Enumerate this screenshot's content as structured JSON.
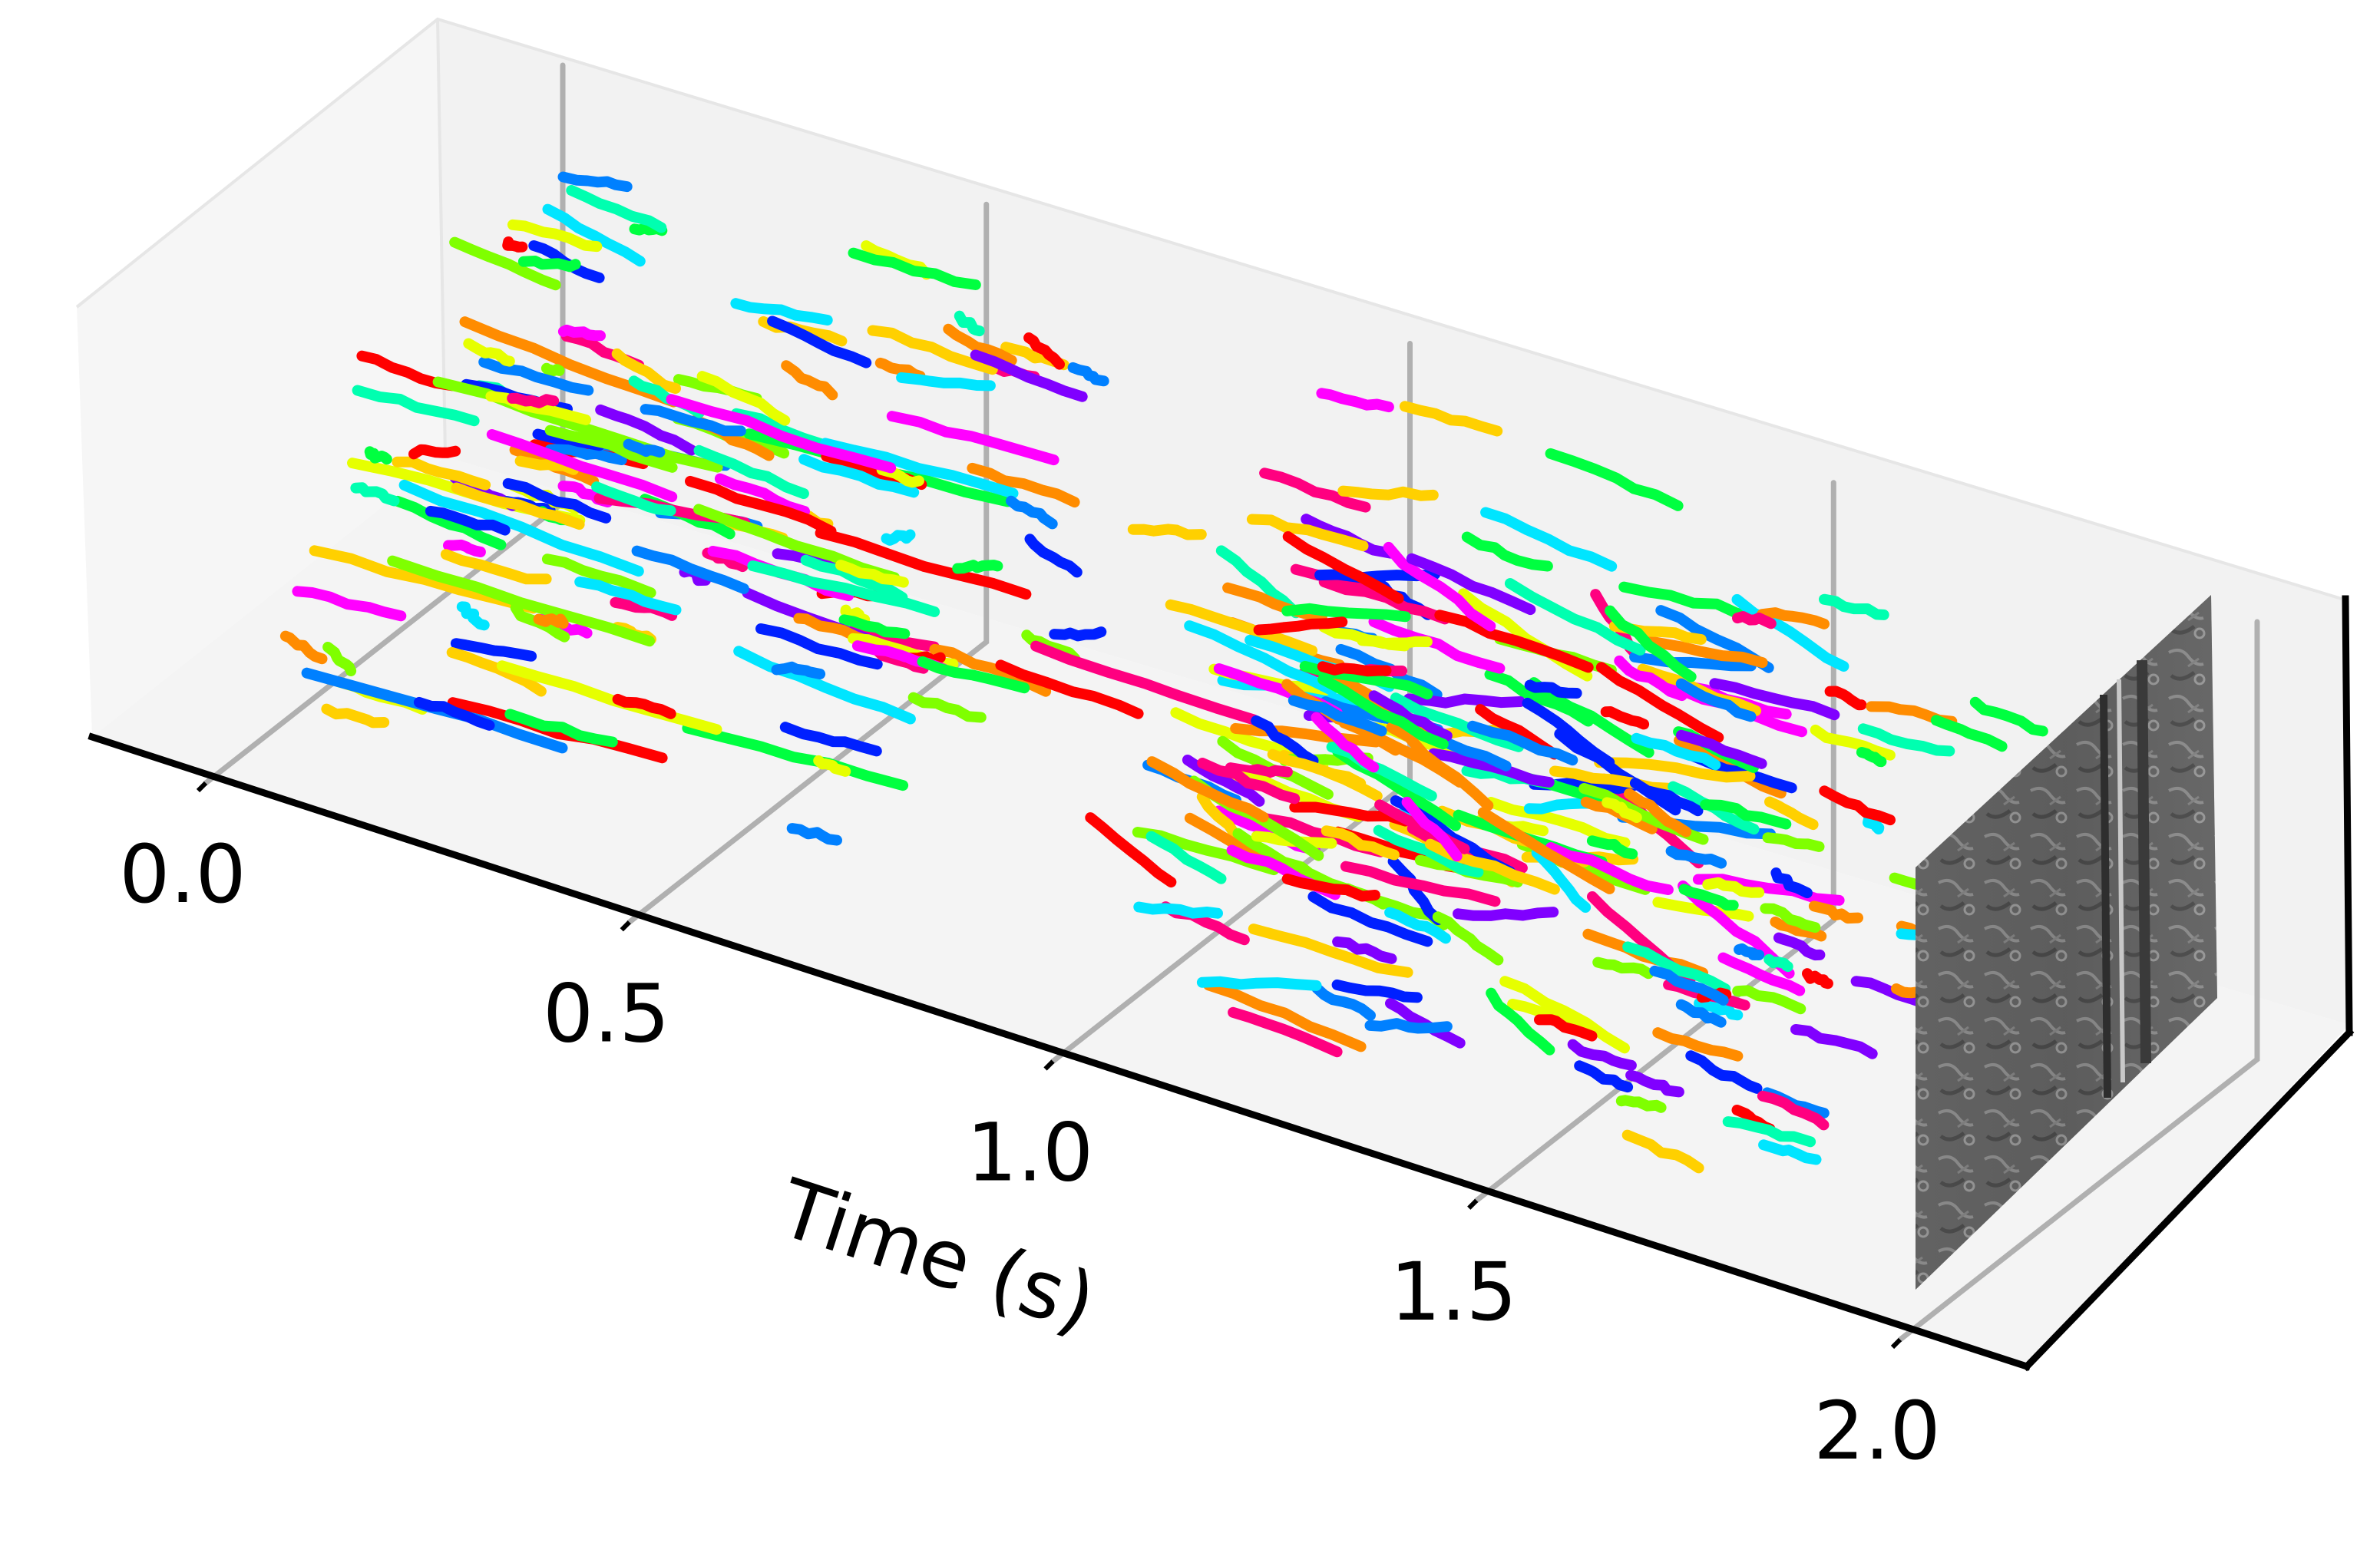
{
  "chart_data": {
    "type": "scatter",
    "xlabel": "Time (s)",
    "x_ticks": [
      "0.0",
      "0.5",
      "1.0",
      "1.5",
      "2.0"
    ],
    "xlim": [
      0.0,
      2.0
    ],
    "yaxis_tick_labels": false,
    "zaxis_tick_labels": false,
    "grid": true,
    "legend": "none",
    "marker_style": "short colored line segments (event tracks)",
    "overlay": "grayscale event frame rendered on the plane at t = 2.0",
    "palette": [
      "#ff0000",
      "#ff8c00",
      "#ffd000",
      "#e6ff00",
      "#7fff00",
      "#00ff40",
      "#00ffb0",
      "#00e5ff",
      "#0080ff",
      "#0020ff",
      "#8000ff",
      "#ff00ff",
      "#ff0080"
    ],
    "pane_color": "#f2f2f2",
    "grid_color": "#b0b0b0"
  }
}
